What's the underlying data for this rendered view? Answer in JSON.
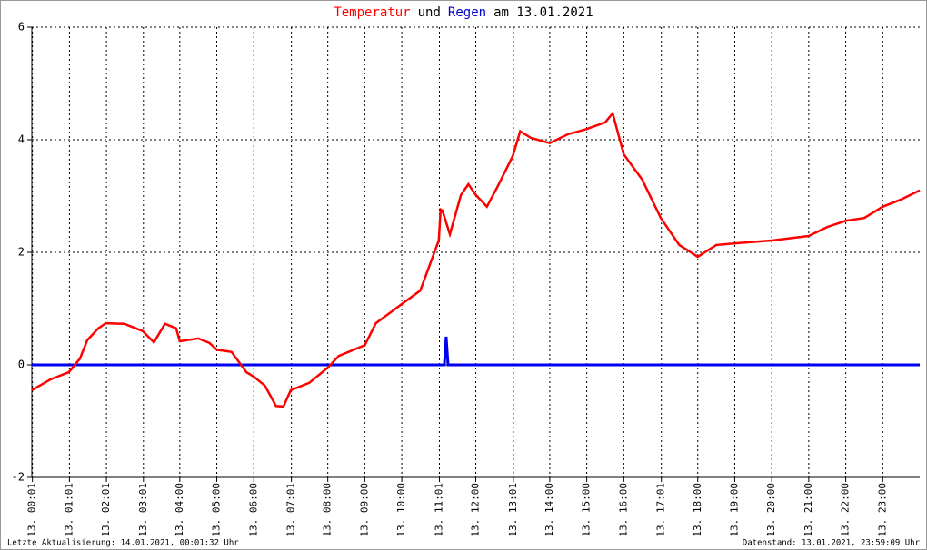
{
  "chart_data": {
    "type": "line",
    "title_parts": [
      {
        "text": "Temperatur",
        "color": "#ff0000"
      },
      {
        "text": "und",
        "color": "#000000"
      },
      {
        "text": "Regen",
        "color": "#0000cc"
      },
      {
        "text": "am 13.01.2021",
        "color": "#000000"
      }
    ],
    "xlim": [
      0,
      24
    ],
    "xticks": [
      {
        "value": 0.0167,
        "label": "13. 00:01"
      },
      {
        "value": 1.0167,
        "label": "13. 01:01"
      },
      {
        "value": 2.0167,
        "label": "13. 02:01"
      },
      {
        "value": 3.0167,
        "label": "13. 03:01"
      },
      {
        "value": 4,
        "label": "13. 04:00"
      },
      {
        "value": 5,
        "label": "13. 05:00"
      },
      {
        "value": 6,
        "label": "13. 06:00"
      },
      {
        "value": 7.0167,
        "label": "13. 07:01"
      },
      {
        "value": 8,
        "label": "13. 08:00"
      },
      {
        "value": 9,
        "label": "13. 09:00"
      },
      {
        "value": 10,
        "label": "13. 10:00"
      },
      {
        "value": 11.0167,
        "label": "13. 11:01"
      },
      {
        "value": 12,
        "label": "13. 12:00"
      },
      {
        "value": 13.0167,
        "label": "13. 13:01"
      },
      {
        "value": 14,
        "label": "13. 14:00"
      },
      {
        "value": 15,
        "label": "13. 15:00"
      },
      {
        "value": 16,
        "label": "13. 16:00"
      },
      {
        "value": 17.0167,
        "label": "13. 17:01"
      },
      {
        "value": 18,
        "label": "13. 18:00"
      },
      {
        "value": 19,
        "label": "13. 19:00"
      },
      {
        "value": 20,
        "label": "13. 20:00"
      },
      {
        "value": 21,
        "label": "13. 21:00"
      },
      {
        "value": 22,
        "label": "13. 22:00"
      },
      {
        "value": 23,
        "label": "13. 23:00"
      }
    ],
    "ylim": [
      -2,
      6
    ],
    "yticks": [
      -2,
      0,
      2,
      4,
      6
    ],
    "grid": true,
    "series": [
      {
        "name": "Temperatur",
        "color": "#ff0000",
        "x": [
          0,
          0.5,
          1,
          1.3,
          1.5,
          1.8,
          2,
          2.5,
          3,
          3.3,
          3.6,
          3.9,
          4,
          4.5,
          4.8,
          5,
          5.4,
          5.8,
          6,
          6.3,
          6.6,
          6.8,
          7,
          7.5,
          8,
          8.3,
          9,
          9.3,
          10,
          10.5,
          11,
          11.05,
          11.1,
          11.3,
          11.6,
          11.8,
          12,
          12.3,
          12.6,
          13,
          13.2,
          13.5,
          14,
          14.5,
          15,
          15.5,
          15.7,
          16,
          16.5,
          17,
          17.5,
          18,
          18.5,
          19,
          20,
          21,
          21.5,
          22,
          22.5,
          23,
          23.5,
          24
        ],
        "values": [
          -0.45,
          -0.26,
          -0.13,
          0.11,
          0.44,
          0.65,
          0.74,
          0.73,
          0.6,
          0.4,
          0.73,
          0.65,
          0.42,
          0.47,
          0.39,
          0.27,
          0.23,
          -0.13,
          -0.21,
          -0.37,
          -0.73,
          -0.74,
          -0.45,
          -0.32,
          -0.05,
          0.16,
          0.35,
          0.74,
          1.08,
          1.32,
          2.21,
          2.76,
          2.74,
          2.32,
          3.02,
          3.21,
          3.02,
          2.81,
          3.18,
          3.71,
          4.15,
          4.03,
          3.94,
          4.1,
          4.19,
          4.31,
          4.47,
          3.74,
          3.29,
          2.61,
          2.13,
          1.92,
          2.13,
          2.16,
          2.21,
          2.29,
          2.45,
          2.56,
          2.61,
          2.81,
          2.94,
          3.1
        ]
      },
      {
        "name": "Regen",
        "color": "#0000ee",
        "x": [
          0,
          11.15,
          11.2,
          11.25,
          24
        ],
        "values": [
          0,
          0,
          0.5,
          0,
          0
        ]
      }
    ],
    "footer_left": "Letzte Aktualisierung: 14.01.2021, 00:01:32 Uhr",
    "footer_right": "Datenstand: 13.01.2021, 23:59:09 Uhr"
  }
}
